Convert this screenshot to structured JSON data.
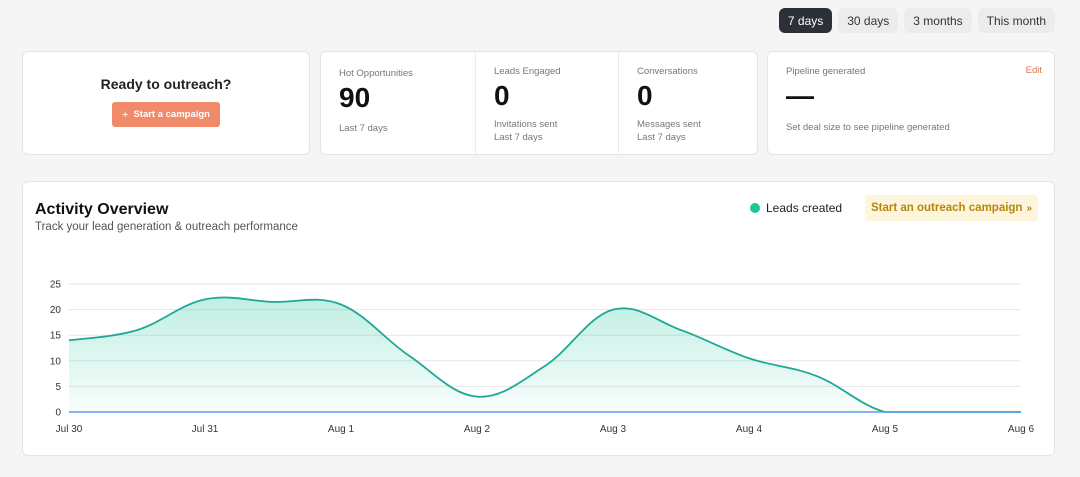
{
  "periods": [
    {
      "label": "7 days",
      "active": true
    },
    {
      "label": "30 days",
      "active": false
    },
    {
      "label": "3 months",
      "active": false
    },
    {
      "label": "This month",
      "active": false
    }
  ],
  "ready": {
    "title": "Ready to outreach?",
    "button": "Start a campaign"
  },
  "stats": {
    "hot": {
      "label": "Hot Opportunities",
      "value": "90",
      "sub": "Last 7 days"
    },
    "leads": {
      "label": "Leads Engaged",
      "value": "0",
      "sub1": "Invitations sent",
      "sub2": "Last 7 days"
    },
    "conversations": {
      "label": "Conversations",
      "value": "0",
      "sub1": "Messages sent",
      "sub2": "Last 7 days"
    }
  },
  "pipeline": {
    "label": "Pipeline generated",
    "value": "—",
    "sub": "Set deal size to see pipeline generated",
    "edit": "Edit"
  },
  "activity": {
    "title": "Activity Overview",
    "subtitle": "Track your lead generation & outreach performance",
    "legend": "Leads created",
    "cta": "Start an outreach campaign",
    "cta_icon": "»"
  },
  "colors": {
    "accent": "#1fc59a",
    "line": "#1fa896",
    "orange": "#f08a6a"
  },
  "chart_data": {
    "type": "area",
    "x": [
      "Jul 30",
      "",
      "Jul 31",
      "",
      "Aug 1",
      "",
      "Aug 2",
      "",
      "Aug 3",
      "",
      "Aug 4",
      "",
      "Aug 5",
      "",
      "Aug 6"
    ],
    "series": [
      {
        "name": "Leads created",
        "values": [
          14,
          16,
          22,
          21.5,
          21,
          11,
          3,
          9,
          20,
          16,
          10.5,
          7,
          0,
          0,
          0
        ]
      }
    ],
    "baseline": [
      0,
      0,
      0,
      0,
      0,
      0,
      0,
      0,
      0,
      0,
      0,
      0,
      0,
      0,
      0
    ],
    "ylim": [
      0,
      25
    ],
    "yticks": [
      "0",
      "5",
      "10",
      "15",
      "20",
      "25"
    ],
    "grid": true
  }
}
